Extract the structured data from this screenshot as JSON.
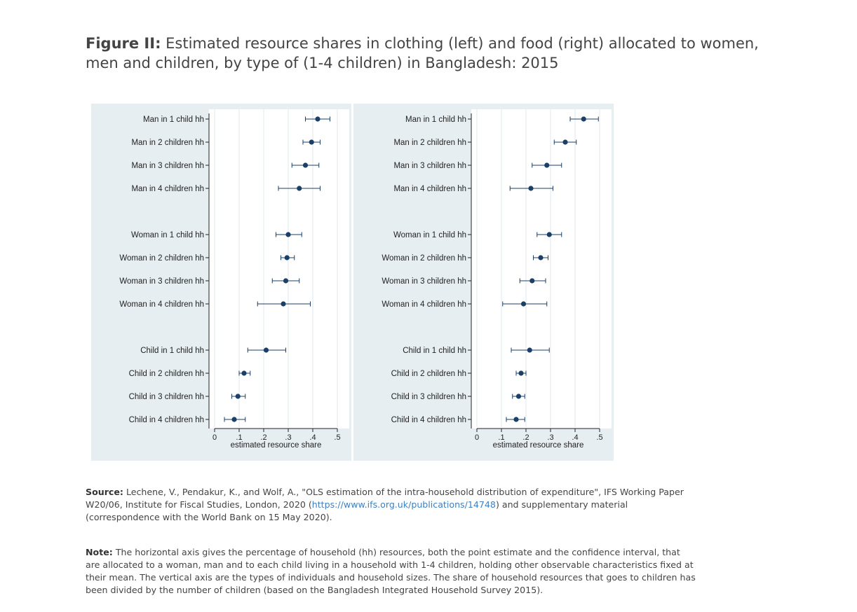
{
  "figure": {
    "title_bold": "Figure II:",
    "title_text": "Estimated resource shares in clothing (left) and food (right) allocated to women, men and children, by type of (1-4 children) in Bangladesh: 2015"
  },
  "chart_data": [
    {
      "type": "scatter",
      "panel": "clothing",
      "xlabel": "estimated resource share",
      "xlim": [
        0,
        0.5
      ],
      "xticks": [
        "0",
        ".1",
        ".2",
        ".3",
        ".4",
        ".5"
      ],
      "grid": "vertical",
      "categories": [
        "Man in 1 child hh",
        "Man in 2 children hh",
        "Man in 3 children hh",
        "Man in 4 children hh",
        "Woman in 1 child hh",
        "Woman in 2 children hh",
        "Woman in 3 children hh",
        "Woman in 4 children hh",
        "Child in 1 child hh",
        "Child in 2 children hh",
        "Child in 3 children hh",
        "Child in 4 children hh"
      ],
      "estimate": [
        0.42,
        0.395,
        0.37,
        0.345,
        0.3,
        0.295,
        0.29,
        0.28,
        0.21,
        0.12,
        0.095,
        0.08
      ],
      "ci_low": [
        0.37,
        0.36,
        0.315,
        0.26,
        0.25,
        0.27,
        0.235,
        0.175,
        0.135,
        0.1,
        0.07,
        0.04
      ],
      "ci_high": [
        0.47,
        0.43,
        0.425,
        0.43,
        0.355,
        0.325,
        0.345,
        0.39,
        0.29,
        0.145,
        0.125,
        0.125
      ]
    },
    {
      "type": "scatter",
      "panel": "food",
      "xlabel": "estimated resource share",
      "xlim": [
        0,
        0.5
      ],
      "xticks": [
        "0",
        ".1",
        ".2",
        ".3",
        ".4",
        ".5"
      ],
      "grid": "vertical",
      "categories": [
        "Man in 1 child hh",
        "Man in 2 children hh",
        "Man in 3 children hh",
        "Man in 4 children hh",
        "Woman in 1 child hh",
        "Woman in 2 children hh",
        "Woman in 3 children hh",
        "Woman in 4 children hh",
        "Child in 1 child hh",
        "Child in 2 children hh",
        "Child in 3 children hh",
        "Child in 4 children hh"
      ],
      "estimate": [
        0.435,
        0.36,
        0.285,
        0.22,
        0.295,
        0.26,
        0.225,
        0.19,
        0.215,
        0.18,
        0.17,
        0.16
      ],
      "ci_low": [
        0.38,
        0.315,
        0.225,
        0.135,
        0.245,
        0.23,
        0.175,
        0.105,
        0.14,
        0.16,
        0.145,
        0.12
      ],
      "ci_high": [
        0.495,
        0.405,
        0.345,
        0.31,
        0.345,
        0.29,
        0.28,
        0.285,
        0.295,
        0.2,
        0.195,
        0.195
      ]
    }
  ],
  "colors": {
    "panel_bg": "#e7eef2",
    "plot_bg": "#ffffff",
    "marker": "#1b3f66",
    "grid": "#e3e8ec"
  },
  "source": {
    "label": "Source:",
    "text_before": "Lechene, V., Pendakur, K., and Wolf, A., \"OLS estimation of the intra-household distribution of expenditure\", IFS Working Paper W20/06, Institute for Fiscal Studies, London, 2020 (",
    "link": "https://www.ifs.org.uk/publications/14748",
    "text_after": ") and supplementary material (correspondence with the World Bank on 15 May 2020)."
  },
  "note": {
    "label": "Note:",
    "text": "The horizontal axis gives the percentage of household (hh) resources, both the point estimate and the confidence interval, that are allocated to a woman, man and to each child living in a household with 1-4 children, holding other observable characteristics fixed at their mean. The vertical axis are the types of individuals and household sizes. The share of household resources that goes to children has been divided by the number of children (based on the Bangladesh Integrated Household Survey 2015)."
  }
}
